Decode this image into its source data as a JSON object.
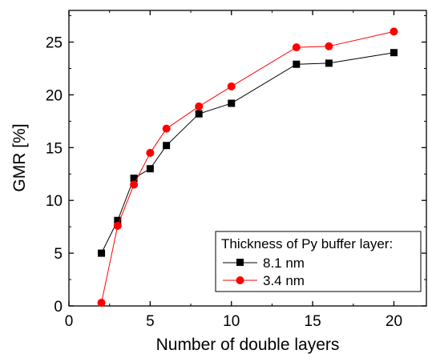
{
  "chart_data": {
    "type": "line",
    "title": "",
    "xlabel": "Number of double layers",
    "ylabel": "GMR [%]",
    "xlim": [
      0,
      22
    ],
    "ylim": [
      0,
      28
    ],
    "xticks": [
      0,
      5,
      10,
      15,
      20
    ],
    "yticks": [
      0,
      5,
      10,
      15,
      20,
      25
    ],
    "grid": false,
    "legend": {
      "title": "Thickness of Py buffer layer:",
      "placement": "bottom-right"
    },
    "series": [
      {
        "name": "8.1 nm",
        "color": "#000000",
        "marker": "square",
        "x": [
          2,
          3,
          4,
          5,
          6,
          8,
          10,
          14,
          16,
          20
        ],
        "y": [
          5.0,
          8.1,
          12.1,
          13.0,
          15.2,
          18.2,
          19.2,
          22.9,
          23.0,
          24.0
        ]
      },
      {
        "name": "3.4 nm",
        "color": "#ff0000",
        "marker": "circle",
        "x": [
          2,
          3,
          4,
          5,
          6,
          8,
          10,
          14,
          16,
          20
        ],
        "y": [
          0.3,
          7.6,
          11.5,
          14.5,
          16.8,
          18.9,
          20.8,
          24.5,
          24.6,
          26.0
        ]
      }
    ]
  }
}
